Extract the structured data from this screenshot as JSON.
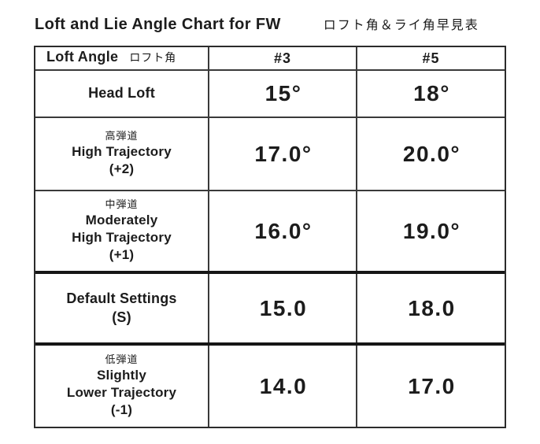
{
  "page": {
    "title": "Loft and Lie Angle Chart for FW",
    "subtitle": "ロフト角＆ライ角早見表"
  },
  "colors": {
    "ink": "#1c1c1c",
    "background": "#ffffff",
    "grid_line": "#3a3a3a"
  },
  "table": {
    "header": {
      "label_en": "Loft Angle",
      "label_jp": "ロフト角",
      "col3": "#3",
      "col5": "#5"
    },
    "rows": [
      {
        "line1": "Head Loft",
        "v3": "15°",
        "v5": "18°"
      },
      {
        "jp": "高弾道",
        "line1": "High Trajectory",
        "line2": "(+2)",
        "v3": "17.0°",
        "v5": "20.0°"
      },
      {
        "jp": "中弾道",
        "line1": "Moderately",
        "line2": "High Trajectory",
        "line3": "(+1)",
        "v3": "16.0°",
        "v5": "19.0°"
      },
      {
        "line1": "Default Settings",
        "line2": "(S)",
        "v3": "15.0",
        "v5": "18.0"
      },
      {
        "jp": "低弾道",
        "line1": "Slightly",
        "line2": "Lower Trajectory",
        "line3": "(-1)",
        "v3": "14.0",
        "v5": "17.0"
      }
    ]
  },
  "chart_data": {
    "type": "table",
    "title": "Loft and Lie Angle Chart for FW",
    "subtitle": "ロフト角＆ライ角早見表 (Loft & Lie Angle quick reference)",
    "columns": [
      "Loft Angle ロフト角",
      "#3",
      "#5"
    ],
    "rows": [
      {
        "setting": "Head Loft",
        "value_3": "15°",
        "value_5": "18°"
      },
      {
        "setting": "高弾道 High Trajectory (+2)",
        "value_3": "17.0°",
        "value_5": "20.0°"
      },
      {
        "setting": "中弾道 Moderately High Trajectory (+1)",
        "value_3": "16.0°",
        "value_5": "19.0°"
      },
      {
        "setting": "Default Settings (S)",
        "value_3": "15.0",
        "value_5": "18.0"
      },
      {
        "setting": "低弾道 Slightly Lower Trajectory (-1)",
        "value_3": "14.0",
        "value_5": "17.0"
      }
    ],
    "layout": {
      "grid": true,
      "thick_separators_after_rows": [
        2,
        3
      ]
    }
  }
}
